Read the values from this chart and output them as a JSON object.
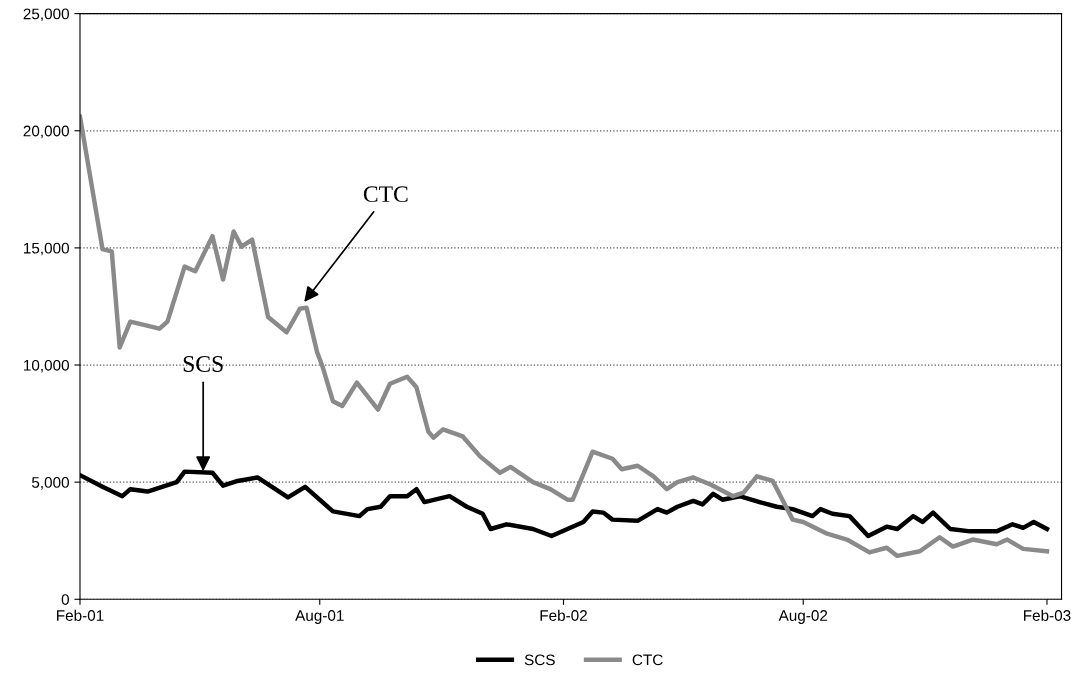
{
  "chart_data": {
    "type": "line",
    "xlim": [
      "2001-02-01",
      "2003-02-12"
    ],
    "xticks": [
      {
        "value": "2001-02-01",
        "label": "Feb-01"
      },
      {
        "value": "2001-08-01",
        "label": "Aug-01"
      },
      {
        "value": "2002-02-01",
        "label": "Feb-02"
      },
      {
        "value": "2002-08-01",
        "label": "Aug-02"
      },
      {
        "value": "2003-02-01",
        "label": "Feb-03"
      }
    ],
    "ylim": [
      0,
      25000
    ],
    "yticks": [
      0,
      {
        "value": 5000,
        "label": "5,000"
      },
      {
        "value": 10000,
        "label": "10,000"
      },
      {
        "value": 15000,
        "label": "15,000"
      },
      {
        "value": 20000,
        "label": "20,000"
      },
      {
        "value": 25000,
        "label": "25,000"
      }
    ],
    "grid": "y",
    "legend": "bottom",
    "marker": "none",
    "series": [
      {
        "name": "SCS",
        "color": "#000000",
        "line_style": "solid",
        "x": [
          "2001-02-01",
          "2001-02-18",
          "2001-03-05",
          "2001-03-11",
          "2001-03-24",
          "2001-04-15",
          "2001-04-21",
          "2001-05-12",
          "2001-05-20",
          "2001-05-31",
          "2001-06-15",
          "2001-07-08",
          "2001-07-21",
          "2001-08-11",
          "2001-08-31",
          "2001-09-06",
          "2001-09-16",
          "2001-09-23",
          "2001-10-06",
          "2001-10-13",
          "2001-10-19",
          "2001-11-07",
          "2001-11-20",
          "2001-12-02",
          "2001-12-08",
          "2001-12-20",
          "2002-01-09",
          "2002-01-23",
          "2002-02-04",
          "2002-02-16",
          "2002-02-23",
          "2002-03-03",
          "2002-03-10",
          "2002-03-29",
          "2002-04-13",
          "2002-04-20",
          "2002-04-28",
          "2002-05-10",
          "2002-05-17",
          "2002-05-25",
          "2002-06-01",
          "2002-06-14",
          "2002-06-29",
          "2002-07-12",
          "2002-07-24",
          "2002-08-08",
          "2002-08-14",
          "2002-08-23",
          "2002-09-05",
          "2002-09-19",
          "2002-10-03",
          "2002-10-11",
          "2002-10-23",
          "2002-10-30",
          "2002-11-07",
          "2002-11-20",
          "2002-12-05",
          "2002-12-25",
          "2003-01-06",
          "2003-01-14",
          "2003-01-22",
          "2003-02-01"
        ],
        "values": [
          5300,
          4800,
          4400,
          4700,
          4600,
          5000,
          5450,
          5400,
          4850,
          5050,
          5200,
          4350,
          4800,
          3750,
          3550,
          3850,
          3950,
          4400,
          4400,
          4700,
          4150,
          4400,
          3950,
          3650,
          3000,
          3200,
          3000,
          2700,
          3000,
          3300,
          3750,
          3700,
          3400,
          3350,
          3850,
          3700,
          3950,
          4200,
          4050,
          4500,
          4250,
          4400,
          4150,
          3950,
          3850,
          3550,
          3850,
          3650,
          3550,
          2700,
          3100,
          3000,
          3550,
          3300,
          3700,
          3000,
          2900,
          2900,
          3200,
          3050,
          3300,
          3000
        ]
      },
      {
        "name": "CTC",
        "color": "#8a8a8a",
        "line_style": "solid",
        "x": [
          "2001-02-01",
          "2001-02-18",
          "2001-02-25",
          "2001-03-03",
          "2001-03-11",
          "2001-04-02",
          "2001-04-08",
          "2001-04-21",
          "2001-04-29",
          "2001-05-12",
          "2001-05-20",
          "2001-05-28",
          "2001-06-03",
          "2001-06-11",
          "2001-06-23",
          "2001-07-07",
          "2001-07-17",
          "2001-07-22",
          "2001-07-30",
          "2001-08-03",
          "2001-08-11",
          "2001-08-18",
          "2001-08-29",
          "2001-09-14",
          "2001-09-23",
          "2001-10-06",
          "2001-10-13",
          "2001-10-22",
          "2001-10-26",
          "2001-11-02",
          "2001-11-17",
          "2001-11-30",
          "2001-12-15",
          "2001-12-23",
          "2002-01-09",
          "2002-01-22",
          "2002-02-04",
          "2002-02-08",
          "2002-02-23",
          "2002-03-10",
          "2002-03-17",
          "2002-03-29",
          "2002-04-10",
          "2002-04-20",
          "2002-04-28",
          "2002-05-10",
          "2002-05-23",
          "2002-06-09",
          "2002-06-17",
          "2002-06-27",
          "2002-07-09",
          "2002-07-24",
          "2002-08-01",
          "2002-08-19",
          "2002-09-03",
          "2002-09-20",
          "2002-10-03",
          "2002-10-11",
          "2002-10-28",
          "2002-11-12",
          "2002-11-22",
          "2002-12-07",
          "2002-12-25",
          "2003-01-02",
          "2003-01-14",
          "2003-02-01"
        ],
        "values": [
          20600,
          14950,
          14850,
          10750,
          11850,
          11550,
          11850,
          14200,
          14000,
          15500,
          13650,
          15700,
          15050,
          15350,
          12050,
          11400,
          12400,
          12450,
          10550,
          9950,
          8450,
          8250,
          9250,
          8100,
          9200,
          9500,
          9050,
          7150,
          6900,
          7250,
          6950,
          6100,
          5400,
          5650,
          5000,
          4700,
          4250,
          4250,
          6300,
          6000,
          5550,
          5700,
          5250,
          4700,
          5000,
          5200,
          4900,
          4400,
          4550,
          5250,
          5050,
          3400,
          3300,
          2800,
          2550,
          2000,
          2200,
          1850,
          2050,
          2650,
          2250,
          2550,
          2350,
          2550,
          2150,
          2050
        ]
      }
    ],
    "annotations": [
      {
        "text": "SCS",
        "x": "2001-05-05",
        "y": 5350
      },
      {
        "text": "CTC",
        "x": "2001-07-19",
        "y": 12600
      }
    ]
  }
}
